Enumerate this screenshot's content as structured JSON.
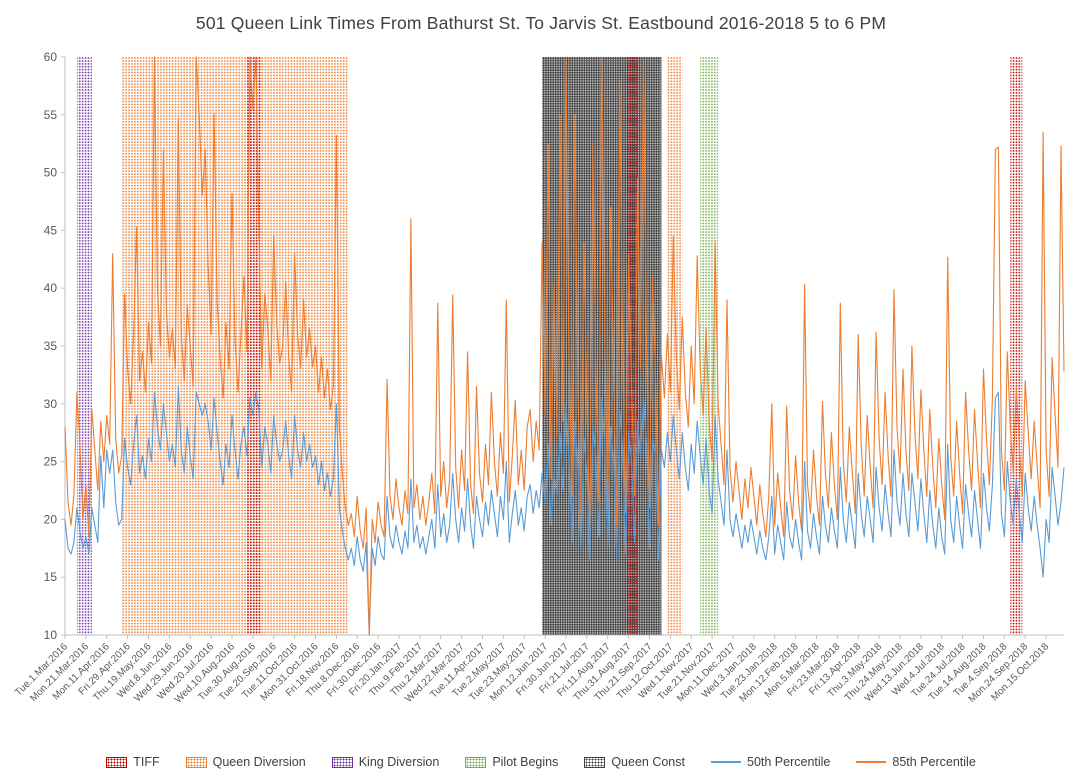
{
  "chart_data": {
    "type": "line",
    "title": "501 Queen Link Times From Bathurst St. To Jarvis St. Eastbound 2016-2018 5 to 6 PM",
    "xlabel": "",
    "ylabel": "",
    "ylim": [
      10,
      60
    ],
    "y_ticks": [
      10,
      15,
      20,
      25,
      30,
      35,
      40,
      45,
      50,
      55,
      60
    ],
    "grid": false,
    "legend_position": "bottom",
    "axis_color": "#BFBFBF",
    "tick_label_color": "#595959",
    "points_per_tick": 7,
    "x_tick_labels": [
      "Tue.1.Mar.2016",
      "Mon.21.Mar.2016",
      "Mon.11.Apr.2016",
      "Fri.29.Apr.2016",
      "Thu.19.May.2016",
      "Wed.8.Jun.2016",
      "Wed.29.Jun.2016",
      "Wed.20.Jul.2016",
      "Wed.10.Aug.2016",
      "Tue.30.Aug.2016",
      "Tue.20.Sep.2016",
      "Tue.11.Oct.2016",
      "Mon.31.Oct.2016",
      "Fri.18.Nov.2016",
      "Thu.8.Dec.2016",
      "Fri.30.Dec.2016",
      "Fri.20.Jan.2017",
      "Thu.9.Feb.2017",
      "Thu.2.Mar.2017",
      "Wed.22.Mar.2017",
      "Tue.11.Apr.2017",
      "Tue.2.May.2017",
      "Tue.23.May.2017",
      "Mon.12.Jun.2017",
      "Fri.30.Jun.2017",
      "Fri.21.Jul.2017",
      "Fri.11.Aug.2017",
      "Thu.31.Aug.2017",
      "Thu.21.Sep.2017",
      "Thu.12.Oct.2017",
      "Wed.1.Nov.2017",
      "Tue.21.Nov.2017",
      "Mon.11.Dec.2017",
      "Wed.3.Jan.2018",
      "Tue.23.Jan.2018",
      "Mon.12.Feb.2018",
      "Mon.5.Mar.2018",
      "Fri.23.Mar.2018",
      "Fri.13.Apr.2018",
      "Thu.3.May.2018",
      "Thu.24.May.2018",
      "Wed.13.Jun.2018",
      "Wed.4.Jul.2018",
      "Tue.24.Jul.2018",
      "Tue.14.Aug.2018",
      "Tue.4.Sep.2018",
      "Mon.24.Sep.2018",
      "Mon.15.Oct.2018"
    ],
    "bands": [
      {
        "name": "King Diversion",
        "color": "#7030A0",
        "start_index": 4,
        "end_index": 9,
        "dense": false
      },
      {
        "name": "Queen Diversion",
        "color": "#ED7D31",
        "start_index": 19,
        "end_index": 95,
        "dense": false
      },
      {
        "name": "TIFF",
        "color": "#C00000",
        "start_index": 61,
        "end_index": 66,
        "dense": false
      },
      {
        "name": "Queen Const",
        "color": "#404040",
        "start_index": 160,
        "end_index": 200,
        "dense": true
      },
      {
        "name": "TIFF",
        "color": "#C00000",
        "start_index": 188,
        "end_index": 192,
        "dense": false
      },
      {
        "name": "Queen Diversion",
        "color": "#ED7D31",
        "start_index": 202,
        "end_index": 207,
        "dense": false
      },
      {
        "name": "Pilot Begins",
        "color": "#70AD47",
        "start_index": 213,
        "end_index": 219,
        "dense": false
      },
      {
        "name": "TIFF",
        "color": "#C00000",
        "start_index": 317,
        "end_index": 321,
        "dense": false
      }
    ],
    "series": [
      {
        "name": "50th Percentile",
        "color": "#5B9BD5",
        "values": [
          20,
          17.5,
          17,
          18,
          21,
          19,
          17.5,
          18.5,
          17,
          21,
          19.5,
          18,
          25.5,
          21,
          26,
          24,
          26,
          21.5,
          19.5,
          20,
          27,
          24.5,
          23,
          26.5,
          29,
          24,
          25.5,
          23.5,
          27,
          25,
          31,
          28,
          26,
          30,
          27.5,
          25,
          26.5,
          24.5,
          31.5,
          26,
          24,
          28,
          25.5,
          23.5,
          31,
          30,
          29,
          30,
          28.5,
          26,
          30.5,
          27.5,
          25,
          23,
          26.5,
          24.5,
          29,
          26,
          23.5,
          26.5,
          28,
          25.5,
          30.5,
          29,
          31,
          29.5,
          24.5,
          28,
          26.5,
          24,
          29,
          26.5,
          25,
          26,
          28.5,
          25.5,
          23.5,
          29,
          26,
          24.5,
          27.5,
          25,
          26.5,
          24.5,
          25.5,
          23,
          25,
          22.5,
          24,
          22,
          23.5,
          30,
          21,
          19,
          17.5,
          16.5,
          17.5,
          16,
          18.5,
          16.5,
          15.5,
          18,
          10,
          17.5,
          16,
          18.5,
          17,
          16.5,
          22,
          18.5,
          17.5,
          19.5,
          18,
          17,
          19,
          17.5,
          23.5,
          18,
          19.5,
          17.5,
          18.5,
          17,
          18.5,
          20,
          17.5,
          23,
          18.5,
          20.5,
          18,
          19.5,
          24,
          20,
          18,
          21,
          19,
          23.5,
          19.5,
          17.5,
          22,
          20,
          18.5,
          21.5,
          19.5,
          22.5,
          20.5,
          18.5,
          22,
          20,
          25,
          18,
          20.5,
          22.5,
          19.5,
          21,
          19,
          22,
          23,
          20.5,
          22.5,
          21,
          24,
          21.5,
          26.5,
          19.5,
          24,
          22,
          27.5,
          22.5,
          30,
          25,
          18,
          28.5,
          24.5,
          17,
          27,
          24,
          16.5,
          28,
          25.5,
          18.5,
          30.5,
          26.5,
          17.5,
          28,
          25,
          16.5,
          29.5,
          26,
          17,
          27.5,
          25,
          18,
          28.5,
          25.5,
          30.5,
          26.5,
          17.5,
          27,
          25.5,
          16.5,
          26,
          24.5,
          27.5,
          25,
          29,
          26,
          23.5,
          27.5,
          24.5,
          22.5,
          26.5,
          24,
          28.5,
          25.5,
          23,
          27,
          22.5,
          20.5,
          29,
          23.5,
          21.5,
          19.5,
          26,
          20,
          18.5,
          20.5,
          19,
          17.5,
          19.5,
          18,
          20,
          18.5,
          17,
          19,
          17.5,
          16.5,
          18.5,
          22,
          17,
          19.5,
          18,
          16.5,
          21.5,
          18.5,
          17.5,
          20,
          18,
          16.5,
          25,
          19,
          17.5,
          20.5,
          18.5,
          17,
          22,
          19.5,
          18,
          21,
          19,
          17.5,
          24.5,
          20,
          18,
          21.5,
          19.5,
          17.5,
          24,
          20.5,
          18.5,
          22,
          20,
          18,
          24.5,
          21,
          19,
          23,
          20.5,
          18.5,
          26,
          21.5,
          19.5,
          24,
          20.5,
          18.5,
          24,
          21.5,
          19,
          23.5,
          20.5,
          18,
          22.5,
          19.5,
          17.5,
          21,
          18.5,
          17,
          26.5,
          20,
          18,
          22,
          19.5,
          17.5,
          23,
          20.5,
          18.5,
          22.5,
          20,
          17.5,
          24,
          21,
          19,
          23,
          30.5,
          31,
          20.5,
          18.5,
          25,
          21.5,
          19.5,
          23.5,
          20.5,
          18,
          24,
          21,
          19,
          22,
          19.5,
          17.5,
          15,
          20,
          18,
          24.5,
          22,
          19.5,
          21.5,
          24.5
        ]
      },
      {
        "name": "85th Percentile",
        "color": "#ED7D31",
        "values": [
          28,
          21.5,
          19.5,
          22,
          31,
          26.5,
          20,
          23,
          18.5,
          29.5,
          26,
          22.5,
          28.5,
          25,
          29,
          26.5,
          43,
          27,
          24,
          25.5,
          39.5,
          33,
          30,
          36,
          45.3,
          32,
          34.5,
          31,
          37,
          33.5,
          60,
          40,
          35,
          52,
          38,
          34,
          36.5,
          33,
          54.7,
          36,
          32,
          38.5,
          35,
          31.5,
          60,
          55,
          48,
          52,
          42,
          36,
          55.1,
          39,
          34,
          30.5,
          37,
          33,
          48.2,
          35.5,
          31,
          36,
          41,
          34.5,
          60,
          55.5,
          60,
          45,
          33,
          39.5,
          36.5,
          32,
          44.5,
          37,
          33.5,
          35,
          40.5,
          34,
          31,
          43,
          36,
          33,
          39,
          34,
          36.5,
          33.2,
          35,
          31,
          34,
          30.5,
          33,
          29.5,
          31.5,
          53.2,
          28,
          24,
          21,
          19.5,
          20.5,
          18.5,
          22,
          19,
          17.5,
          21,
          10.2,
          20,
          18,
          21.5,
          19.5,
          18.5,
          32.1,
          22,
          20,
          23.5,
          21,
          19.5,
          22.5,
          20.5,
          46,
          21,
          23,
          20,
          22,
          19.5,
          21.5,
          24,
          20.5,
          38.7,
          22,
          25,
          21,
          23.5,
          39.4,
          24.5,
          21,
          26,
          22.5,
          34.5,
          23,
          20.5,
          31.5,
          24,
          21.5,
          26.5,
          23,
          31,
          25,
          22,
          27.5,
          24,
          39,
          21.5,
          25.5,
          30.3,
          23,
          26,
          22.5,
          28,
          29.5,
          25,
          28.5,
          26,
          44,
          29,
          52.5,
          23.5,
          40.5,
          27,
          55,
          28.5,
          60,
          34,
          22,
          55,
          31,
          20.5,
          44,
          30,
          19,
          52.5,
          33,
          21.5,
          60,
          36,
          21,
          47,
          32,
          19.5,
          58,
          34.5,
          20.5,
          43,
          31.5,
          22,
          49.5,
          33,
          60,
          35,
          21,
          41,
          32.5,
          19.5,
          34.2,
          30.5,
          36,
          31,
          44.5,
          34,
          29.5,
          37.5,
          31,
          28,
          35,
          30,
          42.8,
          33,
          29,
          36.5,
          28.5,
          25,
          44,
          30,
          26.5,
          23,
          39,
          24.5,
          21.5,
          25,
          22.5,
          20,
          23.5,
          21,
          24.5,
          22,
          19.5,
          23,
          20.5,
          18.5,
          22,
          30,
          19.5,
          24,
          21,
          18.5,
          29.8,
          22.5,
          20,
          25.5,
          21.5,
          19,
          40.3,
          23,
          20.5,
          26,
          22,
          19.5,
          30.2,
          24,
          21,
          27.5,
          23,
          20,
          38.7,
          25,
          21.5,
          28,
          24,
          20.5,
          36,
          26.5,
          22,
          29,
          24.5,
          21,
          36.2,
          27,
          23,
          31,
          25.5,
          22,
          39.9,
          28,
          24,
          33,
          26,
          22.5,
          35,
          27.5,
          23.5,
          31.2,
          26,
          22,
          29.5,
          24.5,
          21,
          27,
          23,
          20,
          42.7,
          25.5,
          22,
          28.5,
          24,
          20.5,
          31,
          26,
          22.5,
          29.5,
          25,
          21,
          33,
          27,
          23,
          30.5,
          52,
          52.2,
          26,
          22.5,
          34.5,
          28,
          24,
          31.5,
          26.5,
          22,
          32,
          27.5,
          23.5,
          28.5,
          24.5,
          21,
          53.5,
          26,
          22,
          34,
          29,
          24.5,
          52.3,
          32.8
        ]
      }
    ],
    "legend": [
      {
        "label": "TIFF",
        "swatch": "band",
        "color": "#C00000"
      },
      {
        "label": "Queen Diversion",
        "swatch": "band",
        "color": "#ED7D31"
      },
      {
        "label": "King Diversion",
        "swatch": "band",
        "color": "#7030A0"
      },
      {
        "label": "Pilot Begins",
        "swatch": "band",
        "color": "#70AD47"
      },
      {
        "label": "Queen Const",
        "swatch": "band",
        "color": "#404040"
      },
      {
        "label": "50th Percentile",
        "swatch": "line",
        "color": "#5B9BD5"
      },
      {
        "label": "85th Percentile",
        "swatch": "line",
        "color": "#ED7D31"
      }
    ]
  }
}
